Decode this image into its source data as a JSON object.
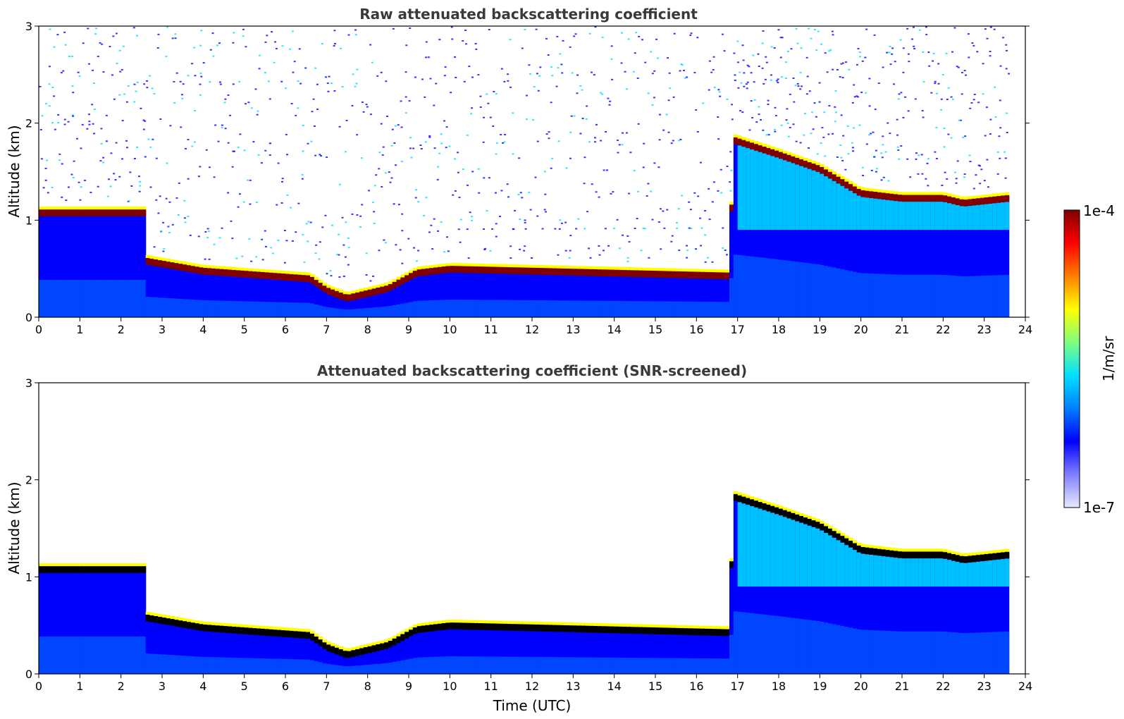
{
  "chart_data": [
    {
      "type": "heatmap",
      "title": "Raw attenuated backscattering coefficient",
      "xlabel": "",
      "ylabel": "Altitude (km)",
      "xlim": [
        0,
        24
      ],
      "ylim": [
        0,
        3
      ],
      "xticks": [
        "0",
        "1",
        "2",
        "3",
        "4",
        "5",
        "6",
        "7",
        "8",
        "9",
        "10",
        "11",
        "12",
        "13",
        "14",
        "15",
        "16",
        "17",
        "18",
        "19",
        "20",
        "21",
        "22",
        "23",
        "24"
      ],
      "yticks": [
        "0",
        "1",
        "2",
        "3"
      ],
      "data_end_time": 23.6,
      "layer_top_km": [
        [
          0,
          1.1
        ],
        [
          2.6,
          1.1
        ],
        [
          2.65,
          0.6
        ],
        [
          4,
          0.5
        ],
        [
          6.6,
          0.42
        ],
        [
          7.0,
          0.3
        ],
        [
          7.5,
          0.22
        ],
        [
          8.5,
          0.32
        ],
        [
          9.2,
          0.48
        ],
        [
          10,
          0.52
        ],
        [
          12,
          0.5
        ],
        [
          16.8,
          0.45
        ],
        [
          16.9,
          1.85
        ],
        [
          18,
          1.7
        ],
        [
          19,
          1.55
        ],
        [
          20,
          1.3
        ],
        [
          21,
          1.25
        ],
        [
          22,
          1.25
        ],
        [
          22.5,
          1.2
        ],
        [
          23.6,
          1.25
        ]
      ],
      "noise": "high"
    },
    {
      "type": "heatmap",
      "title": "Attenuated backscattering coefficient (SNR-screened)",
      "xlabel": "Time (UTC)",
      "ylabel": "Altitude (km)",
      "xlim": [
        0,
        24
      ],
      "ylim": [
        0,
        3
      ],
      "xticks": [
        "0",
        "1",
        "2",
        "3",
        "4",
        "5",
        "6",
        "7",
        "8",
        "9",
        "10",
        "11",
        "12",
        "13",
        "14",
        "15",
        "16",
        "17",
        "18",
        "19",
        "20",
        "21",
        "22",
        "23",
        "24"
      ],
      "yticks": [
        "0",
        "1",
        "2",
        "3"
      ],
      "data_end_time": 23.6,
      "layer_top_km": [
        [
          0,
          1.1
        ],
        [
          2.6,
          1.1
        ],
        [
          2.65,
          0.6
        ],
        [
          4,
          0.5
        ],
        [
          6.6,
          0.42
        ],
        [
          7.0,
          0.3
        ],
        [
          7.5,
          0.22
        ],
        [
          8.5,
          0.32
        ],
        [
          9.2,
          0.48
        ],
        [
          10,
          0.52
        ],
        [
          12,
          0.5
        ],
        [
          16.8,
          0.45
        ],
        [
          16.9,
          1.85
        ],
        [
          18,
          1.7
        ],
        [
          19,
          1.55
        ],
        [
          20,
          1.3
        ],
        [
          21,
          1.25
        ],
        [
          22,
          1.25
        ],
        [
          22.5,
          1.2
        ],
        [
          23.6,
          1.25
        ]
      ],
      "noise": "none"
    }
  ],
  "colorbar": {
    "label": "1/m/sr",
    "min_label": "1e-7",
    "max_label": "1e-4",
    "scale": "log",
    "colormap": "jet",
    "colors": [
      "#e8e8ff",
      "#8080ff",
      "#0000ff",
      "#0080ff",
      "#00e0ff",
      "#80ff80",
      "#ffff00",
      "#ff8000",
      "#ff0000",
      "#800000"
    ]
  }
}
